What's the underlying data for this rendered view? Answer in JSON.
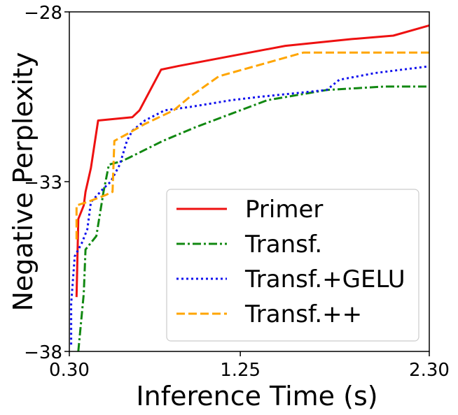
{
  "chart_data": {
    "type": "line",
    "xlabel": "Inference Time (s)",
    "ylabel": "Negative Perplexity",
    "xlim": [
      0.3,
      2.3
    ],
    "ylim": [
      -38,
      -28
    ],
    "xticks": [
      "0.30",
      "1.25",
      "2.30"
    ],
    "xtick_values": [
      0.3,
      1.25,
      2.3
    ],
    "yticks": [
      "−28",
      "−33",
      "−38"
    ],
    "ytick_values": [
      -28,
      -33,
      -38
    ],
    "grid": false,
    "legend_position": "lower-right",
    "series": [
      {
        "name": "Primer",
        "color": "#ee1111",
        "dash": "solid",
        "points": [
          [
            0.34,
            -36.4
          ],
          [
            0.35,
            -34.1
          ],
          [
            0.38,
            -33.7
          ],
          [
            0.39,
            -33.3
          ],
          [
            0.42,
            -32.6
          ],
          [
            0.46,
            -31.2
          ],
          [
            0.65,
            -31.1
          ],
          [
            0.69,
            -30.9
          ],
          [
            0.81,
            -29.7
          ],
          [
            0.9,
            -29.6
          ],
          [
            1.5,
            -29.0
          ],
          [
            1.87,
            -28.8
          ],
          [
            2.1,
            -28.7
          ],
          [
            2.3,
            -28.4
          ]
        ]
      },
      {
        "name": "Transf.",
        "color": "#118811",
        "dash": "dashdot",
        "points": [
          [
            0.35,
            -38.0
          ],
          [
            0.38,
            -36.3
          ],
          [
            0.39,
            -35.0
          ],
          [
            0.45,
            -34.6
          ],
          [
            0.49,
            -33.3
          ],
          [
            0.52,
            -32.5
          ],
          [
            0.59,
            -32.4
          ],
          [
            0.63,
            -32.3
          ],
          [
            0.82,
            -31.8
          ],
          [
            1.0,
            -31.4
          ],
          [
            1.2,
            -31.0
          ],
          [
            1.4,
            -30.6
          ],
          [
            1.73,
            -30.3
          ],
          [
            2.05,
            -30.2
          ],
          [
            2.3,
            -30.2
          ]
        ]
      },
      {
        "name": "Transf.+GELU",
        "color": "#1111ee",
        "dash": "dotted",
        "points": [
          [
            0.31,
            -37.8
          ],
          [
            0.31,
            -36.6
          ],
          [
            0.33,
            -35.2
          ],
          [
            0.37,
            -34.8
          ],
          [
            0.4,
            -34.4
          ],
          [
            0.42,
            -33.6
          ],
          [
            0.49,
            -33.2
          ],
          [
            0.53,
            -33.0
          ],
          [
            0.58,
            -32.5
          ],
          [
            0.62,
            -31.8
          ],
          [
            0.65,
            -31.5
          ],
          [
            0.72,
            -31.2
          ],
          [
            0.83,
            -30.9
          ],
          [
            0.97,
            -30.8
          ],
          [
            1.2,
            -30.6
          ],
          [
            1.36,
            -30.5
          ],
          [
            1.55,
            -30.4
          ],
          [
            1.73,
            -30.3
          ],
          [
            1.8,
            -30.0
          ],
          [
            2.0,
            -29.8
          ],
          [
            2.3,
            -29.6
          ]
        ]
      },
      {
        "name": "Transf.++",
        "color": "#ffa500",
        "dash": "dashed",
        "points": [
          [
            0.34,
            -34.7
          ],
          [
            0.34,
            -33.7
          ],
          [
            0.4,
            -33.6
          ],
          [
            0.5,
            -33.4
          ],
          [
            0.54,
            -33.3
          ],
          [
            0.55,
            -31.8
          ],
          [
            0.62,
            -31.6
          ],
          [
            0.72,
            -31.3
          ],
          [
            0.88,
            -30.9
          ],
          [
            0.97,
            -30.5
          ],
          [
            1.13,
            -29.9
          ],
          [
            1.33,
            -29.6
          ],
          [
            1.6,
            -29.2
          ],
          [
            2.0,
            -29.2
          ],
          [
            2.3,
            -29.2
          ]
        ]
      }
    ]
  }
}
